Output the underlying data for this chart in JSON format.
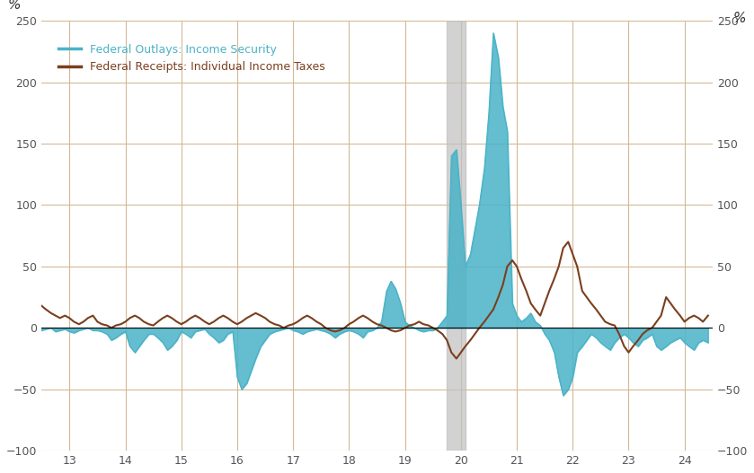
{
  "title": "",
  "xlabel": "",
  "ylabel_left": "%",
  "ylabel_right": "%",
  "xlim": [
    12.5,
    24.5
  ],
  "ylim": [
    -100,
    250
  ],
  "xticks": [
    13,
    14,
    15,
    16,
    17,
    18,
    19,
    20,
    21,
    22,
    23,
    24
  ],
  "yticks": [
    -100,
    -50,
    0,
    50,
    100,
    150,
    200,
    250
  ],
  "background_color": "#ffffff",
  "grid_color": "#d4b896",
  "fill_color": "#4ab3c8",
  "line1_color": "#4ab3c8",
  "line2_color": "#7b3f1e",
  "recession_color": "#c0c0c0",
  "recession_start": 19.75,
  "recession_end": 20.08,
  "legend_label1": "Federal Outlays: Income Security",
  "legend_label2": "Federal Receipts: Individual Income Taxes",
  "fill_alpha": 0.85,
  "x": [
    12.5,
    12.58,
    12.67,
    12.75,
    12.83,
    12.92,
    13.0,
    13.08,
    13.17,
    13.25,
    13.33,
    13.42,
    13.5,
    13.58,
    13.67,
    13.75,
    13.83,
    13.92,
    14.0,
    14.08,
    14.17,
    14.25,
    14.33,
    14.42,
    14.5,
    14.58,
    14.67,
    14.75,
    14.83,
    14.92,
    15.0,
    15.08,
    15.17,
    15.25,
    15.33,
    15.42,
    15.5,
    15.58,
    15.67,
    15.75,
    15.83,
    15.92,
    16.0,
    16.08,
    16.17,
    16.25,
    16.33,
    16.42,
    16.5,
    16.58,
    16.67,
    16.75,
    16.83,
    16.92,
    17.0,
    17.08,
    17.17,
    17.25,
    17.33,
    17.42,
    17.5,
    17.58,
    17.67,
    17.75,
    17.83,
    17.92,
    18.0,
    18.08,
    18.17,
    18.25,
    18.33,
    18.42,
    18.5,
    18.58,
    18.67,
    18.75,
    18.83,
    18.92,
    19.0,
    19.08,
    19.17,
    19.25,
    19.33,
    19.42,
    19.5,
    19.58,
    19.67,
    19.75,
    19.83,
    19.92,
    20.0,
    20.08,
    20.17,
    20.25,
    20.33,
    20.42,
    20.5,
    20.58,
    20.67,
    20.75,
    20.83,
    20.92,
    21.0,
    21.08,
    21.17,
    21.25,
    21.33,
    21.42,
    21.5,
    21.58,
    21.67,
    21.75,
    21.83,
    21.92,
    22.0,
    22.08,
    22.17,
    22.25,
    22.33,
    22.42,
    22.5,
    22.58,
    22.67,
    22.75,
    22.83,
    22.92,
    23.0,
    23.08,
    23.17,
    23.25,
    23.33,
    23.42,
    23.5,
    23.58,
    23.67,
    23.75,
    23.83,
    23.92,
    24.0,
    24.08,
    24.17,
    24.25,
    24.33,
    24.42
  ],
  "y_outlays": [
    -2,
    -1,
    0,
    -3,
    -2,
    -1,
    -3,
    -4,
    -2,
    -1,
    0,
    -2,
    -2,
    -3,
    -5,
    -10,
    -8,
    -5,
    -3,
    -15,
    -20,
    -15,
    -10,
    -5,
    -5,
    -8,
    -12,
    -18,
    -15,
    -10,
    -3,
    -5,
    -8,
    -3,
    -2,
    -1,
    -5,
    -8,
    -12,
    -10,
    -5,
    -3,
    -40,
    -50,
    -45,
    -35,
    -25,
    -15,
    -10,
    -5,
    -3,
    -2,
    -1,
    0,
    -2,
    -3,
    -5,
    -3,
    -2,
    -1,
    -2,
    -3,
    -5,
    -8,
    -5,
    -3,
    -2,
    -3,
    -5,
    -8,
    -3,
    -2,
    0,
    5,
    30,
    38,
    32,
    20,
    5,
    2,
    0,
    -2,
    -3,
    -2,
    -2,
    0,
    5,
    10,
    140,
    145,
    100,
    50,
    60,
    80,
    100,
    130,
    175,
    240,
    220,
    180,
    160,
    20,
    10,
    5,
    8,
    12,
    5,
    2,
    -5,
    -10,
    -20,
    -40,
    -55,
    -50,
    -40,
    -20,
    -15,
    -10,
    -5,
    -8,
    -12,
    -15,
    -18,
    -12,
    -8,
    -5,
    -8,
    -12,
    -15,
    -10,
    -8,
    -5,
    -15,
    -18,
    -15,
    -12,
    -10,
    -8,
    -12,
    -15,
    -18,
    -12,
    -10,
    -12
  ],
  "y_taxes": [
    18,
    15,
    12,
    10,
    8,
    10,
    8,
    5,
    3,
    5,
    8,
    10,
    5,
    3,
    2,
    0,
    2,
    3,
    5,
    8,
    10,
    8,
    5,
    3,
    2,
    5,
    8,
    10,
    8,
    5,
    3,
    5,
    8,
    10,
    8,
    5,
    3,
    5,
    8,
    10,
    8,
    5,
    3,
    5,
    8,
    10,
    12,
    10,
    8,
    5,
    3,
    2,
    0,
    2,
    3,
    5,
    8,
    10,
    8,
    5,
    3,
    0,
    -2,
    -3,
    -2,
    0,
    3,
    5,
    8,
    10,
    8,
    5,
    3,
    2,
    0,
    -2,
    -3,
    -2,
    0,
    2,
    3,
    5,
    3,
    2,
    0,
    -2,
    -5,
    -10,
    -20,
    -25,
    -20,
    -15,
    -10,
    -5,
    0,
    5,
    10,
    15,
    25,
    35,
    50,
    55,
    50,
    40,
    30,
    20,
    15,
    10,
    20,
    30,
    40,
    50,
    65,
    70,
    60,
    50,
    30,
    25,
    20,
    15,
    10,
    5,
    3,
    2,
    -5,
    -15,
    -20,
    -15,
    -10,
    -5,
    -2,
    0,
    5,
    10,
    25,
    20,
    15,
    10,
    5,
    8,
    10,
    8,
    5,
    10
  ]
}
